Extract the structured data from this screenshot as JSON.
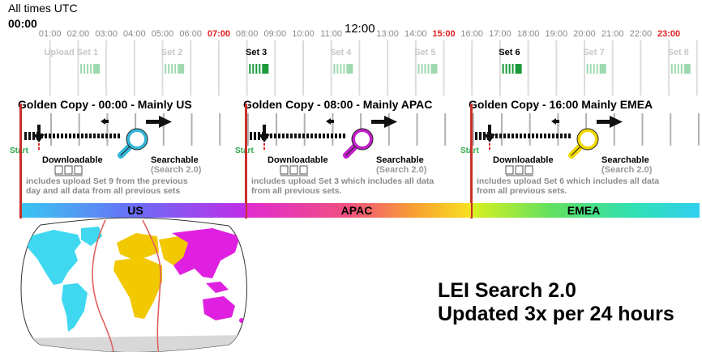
{
  "header": {
    "caption": "All times UTC",
    "start_hour": "00:00",
    "noon_label": "12:00"
  },
  "hours": [
    "01:00",
    "02:00",
    "03:00",
    "04:00",
    "05:00",
    "06:00",
    "07:00",
    "08:00",
    "09:00",
    "10:00",
    "11:00",
    "13:00",
    "14:00",
    "15:00",
    "16:00",
    "17:00",
    "18:00",
    "19:00",
    "20:00",
    "21:00",
    "22:00",
    "23:00"
  ],
  "highlight_hours": [
    "07:00",
    "15:00",
    "23:00"
  ],
  "colors": {
    "highlight": "#e02020",
    "faded_text": "#c8c8c8",
    "faded_bar": "#9fd9b0",
    "active_bar": "#1a9a3a",
    "start_green": "#2aa84a",
    "divider_red": "#c8302a",
    "us_lens": "#35b6d8",
    "apac_lens": "#c020c8",
    "emea_lens": "#f0d800",
    "map_cyan": "#3fd8f0",
    "map_yellow": "#f2c800",
    "map_magenta": "#e020e0",
    "map_gray": "#d8d8d8"
  },
  "upload_sets": [
    {
      "label": "Upload Set 1",
      "active": false
    },
    {
      "label": "Set 2",
      "active": false
    },
    {
      "label": "Set 3",
      "active": true
    },
    {
      "label": "Set 4",
      "active": false
    },
    {
      "label": "Set 5",
      "active": false
    },
    {
      "label": "Set 6",
      "active": true
    },
    {
      "label": "Set 7",
      "active": false
    },
    {
      "label": "Set 8",
      "active": false
    },
    {
      "label": "Set 9",
      "active": true
    }
  ],
  "copies": [
    {
      "title": "Golden Copy - 00:00 - Mainly US",
      "start": "Start",
      "downloadable": "Downloadable",
      "searchable": "Searchable",
      "search_version": "(Search 2.0)",
      "description_lines": [
        "includes upload Set 9 from the previous",
        "day and all data from all previous sets"
      ],
      "region": "US",
      "lens_color": "#35b6d8"
    },
    {
      "title": "Golden Copy - 08:00 - Mainly APAC",
      "start": "Start",
      "downloadable": "Downloadable",
      "searchable": "Searchable",
      "search_version": "(Search 2.0)",
      "description_lines": [
        "includes upload Set 3 which includes all data",
        "from all previous sets."
      ],
      "region": "APAC",
      "lens_color": "#c020c8"
    },
    {
      "title": "Golden Copy - 16:00 Mainly EMEA",
      "start": "Start",
      "downloadable": "Downloadable",
      "searchable": "Searchable",
      "search_version": "(Search 2.0)",
      "description_lines": [
        "includes upload Set 6 which includes all data",
        "from all previous sets."
      ],
      "region": "EMEA",
      "lens_color": "#f0d800"
    }
  ],
  "footer": {
    "line1": "LEI Search 2.0",
    "line2": "Updated 3x per 24 hours"
  }
}
